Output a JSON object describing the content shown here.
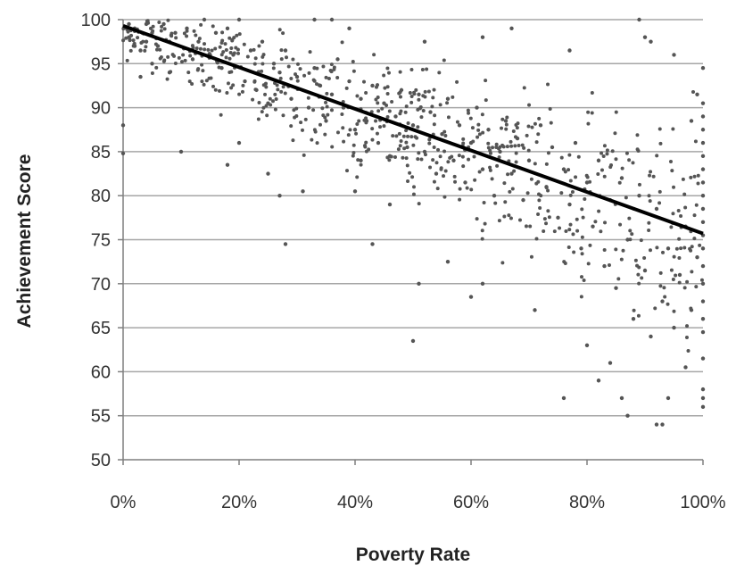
{
  "chart_data": {
    "type": "scatter",
    "title": "",
    "xlabel": "Poverty Rate",
    "ylabel": "Achievement Score",
    "xlim": [
      0,
      1
    ],
    "ylim": [
      50,
      100
    ],
    "x_ticks": [
      0,
      0.2,
      0.4,
      0.6,
      0.8,
      1.0
    ],
    "x_tick_labels": [
      "0%",
      "20%",
      "40%",
      "60%",
      "80%",
      "100%"
    ],
    "y_ticks": [
      50,
      55,
      60,
      65,
      70,
      75,
      80,
      85,
      90,
      95,
      100
    ],
    "y_tick_labels": [
      "50",
      "55",
      "60",
      "65",
      "70",
      "75",
      "80",
      "85",
      "90",
      "95",
      "100"
    ],
    "grid": "horizontal",
    "legend": "none",
    "colors": {
      "points": "#555555",
      "trendline": "#000000",
      "grid": "#a6a6a6",
      "axis": "#7f7f7f"
    },
    "trendline": {
      "x": [
        0,
        1
      ],
      "y": [
        99.3,
        75.7
      ]
    },
    "series": [
      {
        "points": [
          [
            0.0,
            88.0
          ],
          [
            0.0,
            84.8
          ],
          [
            0.01,
            99.5
          ],
          [
            0.01,
            98.0
          ],
          [
            0.02,
            97.0
          ],
          [
            0.02,
            99.0
          ],
          [
            0.03,
            96.5
          ],
          [
            0.03,
            93.5
          ],
          [
            0.04,
            99.5
          ],
          [
            0.04,
            97.5
          ],
          [
            0.05,
            98.5
          ],
          [
            0.05,
            95.0
          ],
          [
            0.06,
            97.0
          ],
          [
            0.07,
            99.5
          ],
          [
            0.08,
            94.0
          ],
          [
            0.08,
            97.5
          ],
          [
            0.09,
            98.5
          ],
          [
            0.1,
            85.0
          ],
          [
            0.11,
            99.0
          ],
          [
            0.12,
            95.5
          ],
          [
            0.13,
            97.5
          ],
          [
            0.14,
            100.0
          ],
          [
            0.15,
            96.0
          ],
          [
            0.16,
            98.5
          ],
          [
            0.17,
            94.5
          ],
          [
            0.18,
            99.0
          ],
          [
            0.19,
            96.0
          ],
          [
            0.2,
            100.0
          ],
          [
            0.21,
            93.0
          ],
          [
            0.22,
            96.5
          ],
          [
            0.23,
            92.0
          ],
          [
            0.24,
            97.5
          ],
          [
            0.25,
            90.5
          ],
          [
            0.26,
            95.0
          ],
          [
            0.27,
            94.0
          ],
          [
            0.28,
            96.5
          ],
          [
            0.29,
            91.0
          ],
          [
            0.3,
            93.5
          ],
          [
            0.18,
            83.5
          ],
          [
            0.2,
            86.0
          ],
          [
            0.25,
            82.5
          ],
          [
            0.27,
            80.0
          ],
          [
            0.28,
            74.5
          ],
          [
            0.32,
            90.0
          ],
          [
            0.33,
            94.5
          ],
          [
            0.34,
            92.5
          ],
          [
            0.35,
            88.5
          ],
          [
            0.36,
            91.5
          ],
          [
            0.37,
            95.5
          ],
          [
            0.38,
            90.0
          ],
          [
            0.39,
            93.0
          ],
          [
            0.4,
            87.5
          ],
          [
            0.41,
            91.0
          ],
          [
            0.41,
            84.0
          ],
          [
            0.42,
            88.5
          ],
          [
            0.43,
            92.5
          ],
          [
            0.44,
            86.0
          ],
          [
            0.45,
            90.5
          ],
          [
            0.46,
            84.5
          ],
          [
            0.47,
            89.0
          ],
          [
            0.48,
            92.0
          ],
          [
            0.49,
            85.5
          ],
          [
            0.5,
            88.0
          ],
          [
            0.31,
            80.5
          ],
          [
            0.33,
            100.0
          ],
          [
            0.36,
            100.0
          ],
          [
            0.39,
            99.0
          ],
          [
            0.4,
            80.5
          ],
          [
            0.43,
            74.5
          ],
          [
            0.46,
            79.0
          ],
          [
            0.52,
            97.5
          ],
          [
            0.51,
            91.5
          ],
          [
            0.52,
            85.0
          ],
          [
            0.53,
            89.5
          ],
          [
            0.54,
            82.5
          ],
          [
            0.55,
            87.0
          ],
          [
            0.56,
            91.0
          ],
          [
            0.57,
            84.0
          ],
          [
            0.58,
            88.0
          ],
          [
            0.59,
            81.5
          ],
          [
            0.6,
            86.0
          ],
          [
            0.61,
            90.0
          ],
          [
            0.62,
            83.0
          ],
          [
            0.63,
            87.5
          ],
          [
            0.64,
            80.0
          ],
          [
            0.65,
            85.0
          ],
          [
            0.66,
            88.5
          ],
          [
            0.67,
            82.5
          ],
          [
            0.68,
            86.5
          ],
          [
            0.69,
            79.5
          ],
          [
            0.7,
            84.0
          ],
          [
            0.51,
            70.0
          ],
          [
            0.5,
            63.5
          ],
          [
            0.56,
            72.5
          ],
          [
            0.6,
            68.5
          ],
          [
            0.62,
            70.0
          ],
          [
            0.62,
            98.0
          ],
          [
            0.67,
            99.0
          ],
          [
            0.71,
            67.0
          ],
          [
            0.72,
            88.0
          ],
          [
            0.73,
            81.0
          ],
          [
            0.74,
            85.5
          ],
          [
            0.75,
            77.5
          ],
          [
            0.76,
            83.0
          ],
          [
            0.77,
            79.0
          ],
          [
            0.78,
            86.0
          ],
          [
            0.79,
            74.0
          ],
          [
            0.8,
            81.5
          ],
          [
            0.81,
            76.5
          ],
          [
            0.82,
            84.0
          ],
          [
            0.83,
            72.0
          ],
          [
            0.84,
            79.5
          ],
          [
            0.85,
            69.5
          ],
          [
            0.86,
            82.0
          ],
          [
            0.87,
            75.0
          ],
          [
            0.88,
            66.0
          ],
          [
            0.89,
            80.0
          ],
          [
            0.9,
            71.5
          ],
          [
            0.76,
            57.0
          ],
          [
            0.77,
            96.5
          ],
          [
            0.8,
            63.0
          ],
          [
            0.82,
            59.0
          ],
          [
            0.84,
            61.0
          ],
          [
            0.86,
            57.0
          ],
          [
            0.87,
            55.0
          ],
          [
            0.89,
            100.0
          ],
          [
            0.9,
            98.0
          ],
          [
            0.91,
            97.5
          ],
          [
            0.91,
            64.0
          ],
          [
            0.92,
            78.5
          ],
          [
            0.93,
            68.0
          ],
          [
            0.93,
            54.0
          ],
          [
            0.94,
            74.0
          ],
          [
            0.94,
            57.0
          ],
          [
            0.95,
            65.0
          ],
          [
            0.95,
            96.0
          ],
          [
            0.96,
            71.0
          ],
          [
            0.97,
            60.5
          ],
          [
            0.97,
            76.5
          ],
          [
            0.98,
            67.0
          ],
          [
            0.98,
            88.5
          ],
          [
            0.99,
            73.0
          ],
          [
            0.99,
            91.5
          ],
          [
            1.0,
            90.5
          ],
          [
            1.0,
            89.0
          ],
          [
            1.0,
            87.5
          ],
          [
            1.0,
            86.0
          ],
          [
            1.0,
            84.5
          ],
          [
            1.0,
            83.0
          ],
          [
            1.0,
            81.5
          ],
          [
            1.0,
            80.0
          ],
          [
            1.0,
            78.5
          ],
          [
            1.0,
            77.0
          ],
          [
            1.0,
            75.5
          ],
          [
            1.0,
            74.0
          ],
          [
            1.0,
            72.0
          ],
          [
            1.0,
            70.0
          ],
          [
            1.0,
            68.0
          ],
          [
            1.0,
            66.0
          ],
          [
            1.0,
            64.5
          ],
          [
            1.0,
            61.5
          ],
          [
            1.0,
            58.0
          ],
          [
            1.0,
            57.0
          ],
          [
            1.0,
            56.0
          ],
          [
            1.0,
            94.5
          ],
          [
            0.92,
            54.0
          ]
        ]
      }
    ]
  }
}
